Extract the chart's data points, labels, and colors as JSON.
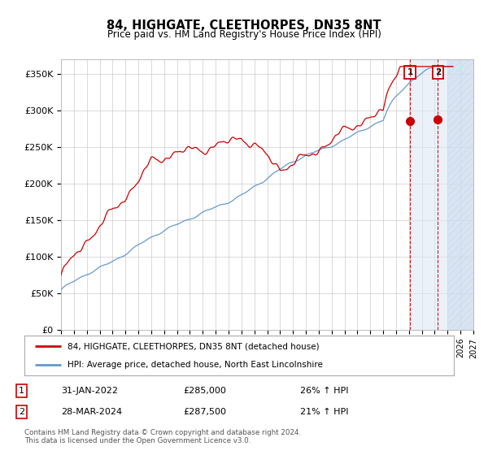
{
  "title": "84, HIGHGATE, CLEETHORPES, DN35 8NT",
  "subtitle": "Price paid vs. HM Land Registry's House Price Index (HPI)",
  "legend_line1": "84, HIGHGATE, CLEETHORPES, DN35 8NT (detached house)",
  "legend_line2": "HPI: Average price, detached house, North East Lincolnshire",
  "annotation1_date": "31-JAN-2022",
  "annotation1_price": "£285,000",
  "annotation1_pct": "26% ↑ HPI",
  "annotation2_date": "28-MAR-2024",
  "annotation2_price": "£287,500",
  "annotation2_pct": "21% ↑ HPI",
  "footer": "Contains HM Land Registry data © Crown copyright and database right 2024.\nThis data is licensed under the Open Government Licence v3.0.",
  "red_color": "#cc0000",
  "blue_color": "#6699cc",
  "shade_color": "#dce8f5",
  "hatch_color": "#c8d8ea",
  "ylim": [
    0,
    370000
  ],
  "yticks": [
    0,
    50000,
    100000,
    150000,
    200000,
    250000,
    300000,
    350000
  ],
  "ytick_labels": [
    "£0",
    "£50K",
    "£100K",
    "£150K",
    "£200K",
    "£250K",
    "£300K",
    "£350K"
  ],
  "year_start": 1995,
  "year_end": 2027,
  "sale1_year": 2022.08,
  "sale1_price": 285000,
  "sale2_year": 2024.24,
  "sale2_price": 287500
}
